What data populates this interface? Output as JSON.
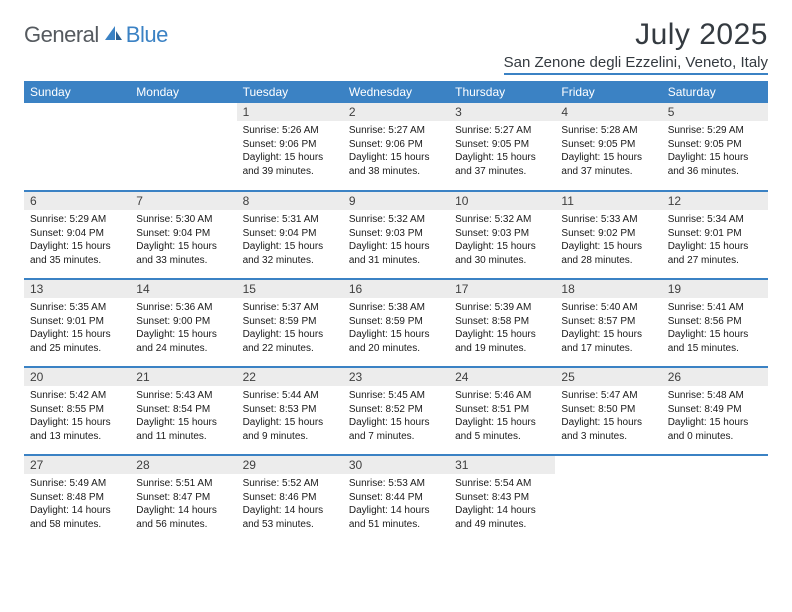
{
  "brand": {
    "part1": "General",
    "part2": "Blue"
  },
  "title": "July 2025",
  "location": "San Zenone degli Ezzelini, Veneto, Italy",
  "colors": {
    "accent": "#3b82c4",
    "header_bg": "#3b82c4",
    "header_text": "#ffffff",
    "daynum_bg": "#ececec",
    "text": "#1a1a1a",
    "logo_gray": "#555a5f"
  },
  "day_headers": [
    "Sunday",
    "Monday",
    "Tuesday",
    "Wednesday",
    "Thursday",
    "Friday",
    "Saturday"
  ],
  "weeks": [
    [
      {
        "blank": true
      },
      {
        "blank": true
      },
      {
        "n": "1",
        "sr": "5:26 AM",
        "ss": "9:06 PM",
        "dl": "15 hours and 39 minutes."
      },
      {
        "n": "2",
        "sr": "5:27 AM",
        "ss": "9:06 PM",
        "dl": "15 hours and 38 minutes."
      },
      {
        "n": "3",
        "sr": "5:27 AM",
        "ss": "9:05 PM",
        "dl": "15 hours and 37 minutes."
      },
      {
        "n": "4",
        "sr": "5:28 AM",
        "ss": "9:05 PM",
        "dl": "15 hours and 37 minutes."
      },
      {
        "n": "5",
        "sr": "5:29 AM",
        "ss": "9:05 PM",
        "dl": "15 hours and 36 minutes."
      }
    ],
    [
      {
        "n": "6",
        "sr": "5:29 AM",
        "ss": "9:04 PM",
        "dl": "15 hours and 35 minutes."
      },
      {
        "n": "7",
        "sr": "5:30 AM",
        "ss": "9:04 PM",
        "dl": "15 hours and 33 minutes."
      },
      {
        "n": "8",
        "sr": "5:31 AM",
        "ss": "9:04 PM",
        "dl": "15 hours and 32 minutes."
      },
      {
        "n": "9",
        "sr": "5:32 AM",
        "ss": "9:03 PM",
        "dl": "15 hours and 31 minutes."
      },
      {
        "n": "10",
        "sr": "5:32 AM",
        "ss": "9:03 PM",
        "dl": "15 hours and 30 minutes."
      },
      {
        "n": "11",
        "sr": "5:33 AM",
        "ss": "9:02 PM",
        "dl": "15 hours and 28 minutes."
      },
      {
        "n": "12",
        "sr": "5:34 AM",
        "ss": "9:01 PM",
        "dl": "15 hours and 27 minutes."
      }
    ],
    [
      {
        "n": "13",
        "sr": "5:35 AM",
        "ss": "9:01 PM",
        "dl": "15 hours and 25 minutes."
      },
      {
        "n": "14",
        "sr": "5:36 AM",
        "ss": "9:00 PM",
        "dl": "15 hours and 24 minutes."
      },
      {
        "n": "15",
        "sr": "5:37 AM",
        "ss": "8:59 PM",
        "dl": "15 hours and 22 minutes."
      },
      {
        "n": "16",
        "sr": "5:38 AM",
        "ss": "8:59 PM",
        "dl": "15 hours and 20 minutes."
      },
      {
        "n": "17",
        "sr": "5:39 AM",
        "ss": "8:58 PM",
        "dl": "15 hours and 19 minutes."
      },
      {
        "n": "18",
        "sr": "5:40 AM",
        "ss": "8:57 PM",
        "dl": "15 hours and 17 minutes."
      },
      {
        "n": "19",
        "sr": "5:41 AM",
        "ss": "8:56 PM",
        "dl": "15 hours and 15 minutes."
      }
    ],
    [
      {
        "n": "20",
        "sr": "5:42 AM",
        "ss": "8:55 PM",
        "dl": "15 hours and 13 minutes."
      },
      {
        "n": "21",
        "sr": "5:43 AM",
        "ss": "8:54 PM",
        "dl": "15 hours and 11 minutes."
      },
      {
        "n": "22",
        "sr": "5:44 AM",
        "ss": "8:53 PM",
        "dl": "15 hours and 9 minutes."
      },
      {
        "n": "23",
        "sr": "5:45 AM",
        "ss": "8:52 PM",
        "dl": "15 hours and 7 minutes."
      },
      {
        "n": "24",
        "sr": "5:46 AM",
        "ss": "8:51 PM",
        "dl": "15 hours and 5 minutes."
      },
      {
        "n": "25",
        "sr": "5:47 AM",
        "ss": "8:50 PM",
        "dl": "15 hours and 3 minutes."
      },
      {
        "n": "26",
        "sr": "5:48 AM",
        "ss": "8:49 PM",
        "dl": "15 hours and 0 minutes."
      }
    ],
    [
      {
        "n": "27",
        "sr": "5:49 AM",
        "ss": "8:48 PM",
        "dl": "14 hours and 58 minutes."
      },
      {
        "n": "28",
        "sr": "5:51 AM",
        "ss": "8:47 PM",
        "dl": "14 hours and 56 minutes."
      },
      {
        "n": "29",
        "sr": "5:52 AM",
        "ss": "8:46 PM",
        "dl": "14 hours and 53 minutes."
      },
      {
        "n": "30",
        "sr": "5:53 AM",
        "ss": "8:44 PM",
        "dl": "14 hours and 51 minutes."
      },
      {
        "n": "31",
        "sr": "5:54 AM",
        "ss": "8:43 PM",
        "dl": "14 hours and 49 minutes."
      },
      {
        "blank": true
      },
      {
        "blank": true
      }
    ]
  ],
  "labels": {
    "sunrise": "Sunrise:",
    "sunset": "Sunset:",
    "daylight": "Daylight:"
  }
}
